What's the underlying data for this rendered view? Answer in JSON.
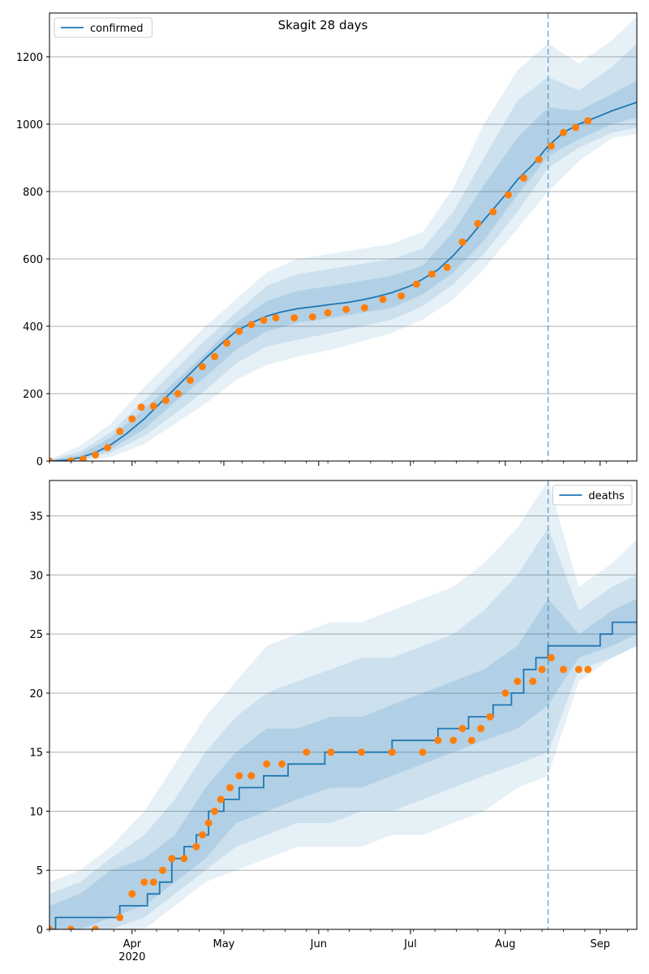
{
  "figure": {
    "title": "Skagit 28 days"
  },
  "colors": {
    "model_line": "#1f77b4",
    "observed_points": "#ff7f0e",
    "band": "#1f77b4",
    "grid": "#b0b0b0",
    "forecast_line": "#1f77b4"
  },
  "x_axis": {
    "month_labels": [
      "Apr",
      "May",
      "Jun",
      "Jul",
      "Aug",
      "Sep"
    ],
    "year_label": "2020"
  },
  "chart_data": [
    {
      "type": "line",
      "title": "Skagit 28 days",
      "legend": [
        "confirmed"
      ],
      "legend_position": "top-left",
      "grid": "horizontal",
      "xlim": [
        "2020-03-05",
        "2020-09-13"
      ],
      "ylim": [
        0,
        1330
      ],
      "yticks": [
        0,
        200,
        400,
        600,
        800,
        1000,
        1200
      ],
      "forecast_start": "2020-08-15",
      "series": [
        {
          "name": "confirmed",
          "kind": "model-median",
          "x": [
            "2020-03-05",
            "2020-03-10",
            "2020-03-15",
            "2020-03-20",
            "2020-03-25",
            "2020-03-30",
            "2020-04-05",
            "2020-04-10",
            "2020-04-15",
            "2020-04-20",
            "2020-04-25",
            "2020-05-01",
            "2020-05-05",
            "2020-05-10",
            "2020-05-15",
            "2020-05-20",
            "2020-05-25",
            "2020-06-01",
            "2020-06-05",
            "2020-06-10",
            "2020-06-15",
            "2020-06-20",
            "2020-06-25",
            "2020-07-01",
            "2020-07-05",
            "2020-07-10",
            "2020-07-15",
            "2020-07-20",
            "2020-07-25",
            "2020-08-01",
            "2020-08-05",
            "2020-08-10",
            "2020-08-15",
            "2020-08-20",
            "2020-08-25",
            "2020-09-01",
            "2020-09-05",
            "2020-09-13"
          ],
          "values": [
            0,
            2,
            10,
            25,
            48,
            80,
            125,
            170,
            215,
            260,
            305,
            355,
            385,
            410,
            430,
            443,
            452,
            460,
            465,
            470,
            478,
            488,
            500,
            520,
            540,
            568,
            610,
            660,
            715,
            790,
            835,
            880,
            935,
            975,
            1000,
            1025,
            1040,
            1065
          ]
        },
        {
          "name": "",
          "kind": "observed",
          "x": [
            "2020-03-05",
            "2020-03-12",
            "2020-03-16",
            "2020-03-20",
            "2020-03-24",
            "2020-03-28",
            "2020-04-01",
            "2020-04-04",
            "2020-04-08",
            "2020-04-12",
            "2020-04-16",
            "2020-04-20",
            "2020-04-24",
            "2020-04-28",
            "2020-05-02",
            "2020-05-06",
            "2020-05-10",
            "2020-05-14",
            "2020-05-18",
            "2020-05-24",
            "2020-05-30",
            "2020-06-04",
            "2020-06-10",
            "2020-06-16",
            "2020-06-22",
            "2020-06-28",
            "2020-07-03",
            "2020-07-08",
            "2020-07-13",
            "2020-07-18",
            "2020-07-23",
            "2020-07-28",
            "2020-08-02",
            "2020-08-07",
            "2020-08-12",
            "2020-08-16",
            "2020-08-20",
            "2020-08-24",
            "2020-08-28"
          ],
          "values": [
            0,
            0,
            5,
            18,
            40,
            88,
            125,
            160,
            163,
            180,
            200,
            240,
            280,
            310,
            350,
            385,
            405,
            418,
            425,
            425,
            428,
            440,
            450,
            455,
            480,
            490,
            525,
            555,
            575,
            650,
            705,
            740,
            790,
            840,
            895,
            935,
            975,
            990,
            1010
          ]
        }
      ],
      "bands": [
        {
          "level": "outer",
          "x": [
            "2020-03-05",
            "2020-03-15",
            "2020-03-25",
            "2020-04-05",
            "2020-04-15",
            "2020-04-25",
            "2020-05-05",
            "2020-05-15",
            "2020-05-25",
            "2020-06-05",
            "2020-06-15",
            "2020-06-25",
            "2020-07-05",
            "2020-07-15",
            "2020-07-25",
            "2020-08-05",
            "2020-08-15",
            "2020-08-25",
            "2020-09-05",
            "2020-09-13"
          ],
          "lower": [
            0,
            0,
            12,
            50,
            110,
            170,
            240,
            285,
            310,
            330,
            355,
            380,
            420,
            480,
            570,
            690,
            800,
            890,
            960,
            970
          ],
          "upper": [
            5,
            45,
            110,
            220,
            310,
            400,
            480,
            560,
            600,
            615,
            630,
            645,
            680,
            810,
            1000,
            1160,
            1240,
            1180,
            1250,
            1320
          ]
        },
        {
          "level": "middle",
          "x": [
            "2020-03-05",
            "2020-03-15",
            "2020-03-25",
            "2020-04-05",
            "2020-04-15",
            "2020-04-25",
            "2020-05-05",
            "2020-05-15",
            "2020-05-25",
            "2020-06-05",
            "2020-06-15",
            "2020-06-25",
            "2020-07-05",
            "2020-07-15",
            "2020-07-25",
            "2020-08-05",
            "2020-08-15",
            "2020-08-25",
            "2020-09-05",
            "2020-09-13"
          ],
          "lower": [
            0,
            2,
            25,
            75,
            140,
            210,
            290,
            340,
            360,
            380,
            400,
            420,
            460,
            525,
            615,
            740,
            870,
            930,
            975,
            990
          ],
          "upper": [
            3,
            28,
            85,
            180,
            270,
            360,
            440,
            520,
            555,
            570,
            585,
            600,
            630,
            740,
            900,
            1070,
            1140,
            1100,
            1170,
            1240
          ]
        },
        {
          "level": "inner",
          "x": [
            "2020-03-05",
            "2020-03-15",
            "2020-03-25",
            "2020-04-05",
            "2020-04-15",
            "2020-04-25",
            "2020-05-05",
            "2020-05-15",
            "2020-05-25",
            "2020-06-05",
            "2020-06-15",
            "2020-06-25",
            "2020-07-05",
            "2020-07-15",
            "2020-07-25",
            "2020-08-05",
            "2020-08-15",
            "2020-08-25",
            "2020-09-05",
            "2020-09-13"
          ],
          "lower": [
            0,
            5,
            35,
            95,
            175,
            250,
            330,
            385,
            410,
            425,
            440,
            455,
            495,
            560,
            655,
            790,
            905,
            955,
            1000,
            1020
          ],
          "upper": [
            1,
            18,
            70,
            155,
            235,
            320,
            410,
            475,
            505,
            520,
            535,
            550,
            580,
            680,
            820,
            960,
            1050,
            1040,
            1090,
            1130
          ]
        }
      ]
    },
    {
      "type": "line",
      "title": "",
      "legend": [
        "deaths"
      ],
      "legend_position": "top-right",
      "grid": "horizontal",
      "xlim": [
        "2020-03-05",
        "2020-09-13"
      ],
      "ylim": [
        0,
        38
      ],
      "yticks": [
        0,
        5,
        10,
        15,
        20,
        25,
        30,
        35
      ],
      "forecast_start": "2020-08-15",
      "series": [
        {
          "name": "deaths",
          "kind": "model-median",
          "step": true,
          "x": [
            "2020-03-05",
            "2020-03-07",
            "2020-03-18",
            "2020-03-28",
            "2020-04-06",
            "2020-04-10",
            "2020-04-14",
            "2020-04-18",
            "2020-04-22",
            "2020-04-26",
            "2020-05-01",
            "2020-05-06",
            "2020-05-14",
            "2020-05-22",
            "2020-06-03",
            "2020-06-25",
            "2020-07-10",
            "2020-07-20",
            "2020-07-28",
            "2020-08-03",
            "2020-08-07",
            "2020-08-11",
            "2020-08-15",
            "2020-08-20",
            "2020-08-25",
            "2020-09-01",
            "2020-09-05",
            "2020-09-13"
          ],
          "values": [
            0,
            1,
            1,
            2,
            3,
            4,
            6,
            7,
            8,
            10,
            11,
            12,
            13,
            14,
            15,
            16,
            17,
            18,
            19,
            20,
            22,
            23,
            24,
            24,
            24,
            25,
            26,
            26
          ]
        },
        {
          "name": "",
          "kind": "observed",
          "x": [
            "2020-03-05",
            "2020-03-12",
            "2020-03-20",
            "2020-03-28",
            "2020-04-01",
            "2020-04-05",
            "2020-04-08",
            "2020-04-11",
            "2020-04-14",
            "2020-04-18",
            "2020-04-22",
            "2020-04-24",
            "2020-04-26",
            "2020-04-28",
            "2020-04-30",
            "2020-05-03",
            "2020-05-06",
            "2020-05-10",
            "2020-05-15",
            "2020-05-20",
            "2020-05-28",
            "2020-06-05",
            "2020-06-15",
            "2020-06-25",
            "2020-07-05",
            "2020-07-10",
            "2020-07-15",
            "2020-07-18",
            "2020-07-21",
            "2020-07-24",
            "2020-07-27",
            "2020-08-01",
            "2020-08-05",
            "2020-08-10",
            "2020-08-13",
            "2020-08-16",
            "2020-08-20",
            "2020-08-25",
            "2020-08-28"
          ],
          "values": [
            0,
            0,
            0,
            1,
            3,
            4,
            4,
            5,
            6,
            6,
            7,
            8,
            9,
            10,
            11,
            12,
            13,
            13,
            14,
            14,
            15,
            15,
            15,
            15,
            15,
            16,
            16,
            17,
            16,
            17,
            18,
            20,
            21,
            21,
            22,
            23,
            22,
            22,
            22
          ]
        }
      ],
      "bands": [
        {
          "level": "outer",
          "x": [
            "2020-03-05",
            "2020-03-15",
            "2020-03-25",
            "2020-04-05",
            "2020-04-15",
            "2020-04-25",
            "2020-05-05",
            "2020-05-15",
            "2020-05-25",
            "2020-06-05",
            "2020-06-15",
            "2020-06-25",
            "2020-07-05",
            "2020-07-15",
            "2020-07-25",
            "2020-08-05",
            "2020-08-15",
            "2020-08-25",
            "2020-09-05",
            "2020-09-13"
          ],
          "lower": [
            0,
            0,
            0,
            0,
            2,
            4,
            5,
            6,
            7,
            7,
            7,
            8,
            8,
            9,
            10,
            12,
            13,
            21,
            23,
            24
          ],
          "upper": [
            4,
            5,
            7,
            10,
            14,
            18,
            21,
            24,
            25,
            26,
            26,
            27,
            28,
            29,
            31,
            34,
            38,
            29,
            31,
            33
          ]
        },
        {
          "level": "middle",
          "x": [
            "2020-03-05",
            "2020-03-15",
            "2020-03-25",
            "2020-04-05",
            "2020-04-15",
            "2020-04-25",
            "2020-05-05",
            "2020-05-15",
            "2020-05-25",
            "2020-06-05",
            "2020-06-15",
            "2020-06-25",
            "2020-07-05",
            "2020-07-15",
            "2020-07-25",
            "2020-08-05",
            "2020-08-15",
            "2020-08-25",
            "2020-09-05",
            "2020-09-13"
          ],
          "lower": [
            0,
            0,
            0,
            1,
            3,
            5,
            7,
            8,
            9,
            9,
            10,
            10,
            11,
            12,
            13,
            14,
            15,
            22,
            23,
            24
          ],
          "upper": [
            3,
            4,
            6,
            8,
            11,
            15,
            18,
            20,
            21,
            22,
            23,
            23,
            24,
            25,
            27,
            30,
            34,
            27,
            29,
            30
          ]
        },
        {
          "level": "inner",
          "x": [
            "2020-03-05",
            "2020-03-15",
            "2020-03-25",
            "2020-04-05",
            "2020-04-15",
            "2020-04-25",
            "2020-05-05",
            "2020-05-15",
            "2020-05-25",
            "2020-06-05",
            "2020-06-15",
            "2020-06-25",
            "2020-07-05",
            "2020-07-15",
            "2020-07-25",
            "2020-08-05",
            "2020-08-15",
            "2020-08-25",
            "2020-09-05",
            "2020-09-13"
          ],
          "lower": [
            0,
            0,
            1,
            2,
            4,
            6,
            9,
            10,
            11,
            12,
            12,
            13,
            14,
            15,
            16,
            17,
            19,
            23,
            24,
            25
          ],
          "upper": [
            2,
            3,
            5,
            6,
            8,
            12,
            15,
            17,
            17,
            18,
            18,
            19,
            20,
            21,
            22,
            24,
            28,
            25,
            27,
            28
          ]
        }
      ]
    }
  ]
}
